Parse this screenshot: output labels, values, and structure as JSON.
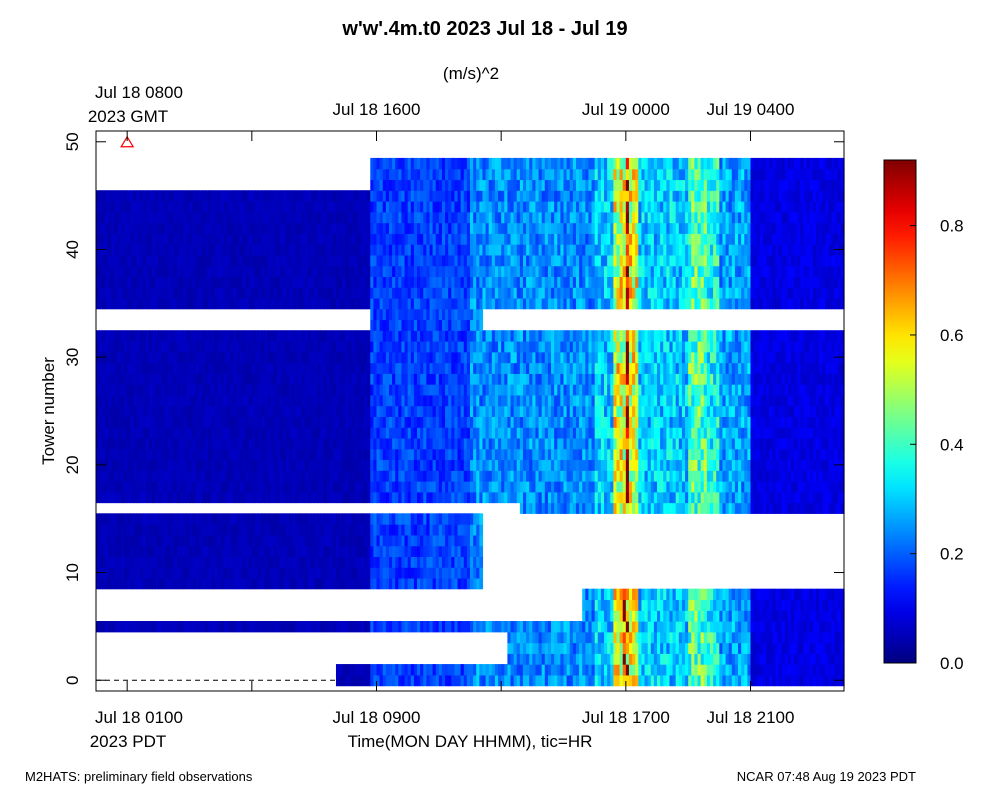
{
  "chart_data": {
    "type": "heatmap",
    "title": "w'w'.4m.t0 2023 Jul 18 - Jul 19",
    "units": "(m/s)^2",
    "ylabel": "Tower number",
    "xlabel": "Time(MON DAY HHMM), tic=HR",
    "top_axis": {
      "first_tick": [
        "Jul 18 0800",
        "2023 GMT"
      ],
      "ticks": [
        "Jul 18 1600",
        "Jul 19 0000",
        "Jul 19 0400"
      ]
    },
    "bottom_axis": {
      "first_tick": [
        "Jul 18 0100",
        "2023 PDT"
      ],
      "ticks": [
        "Jul 18 0900",
        "Jul 18 1700",
        "Jul 18 2100"
      ]
    },
    "x_range_hours_pdt": [
      0,
      24
    ],
    "ylim": [
      -1,
      51
    ],
    "yticks": [
      "0",
      "10",
      "20",
      "30",
      "40",
      "50"
    ],
    "ytick_values": [
      0,
      10,
      20,
      30,
      40,
      50
    ],
    "colorbar": {
      "range": [
        0.0,
        0.92
      ],
      "ticks": [
        "0.0",
        "0.2",
        "0.4",
        "0.6",
        "0.8"
      ],
      "tick_values": [
        0.0,
        0.2,
        0.4,
        0.6,
        0.8
      ],
      "colormap": "jet"
    },
    "marker": {
      "symbol": "triangle",
      "color": "#ff0000",
      "time_hour": 1,
      "tower": 50
    },
    "dashed_line": {
      "tower": 0,
      "from_hour": 0,
      "to_hour": 7.7
    },
    "blocks": [
      {
        "towers": [
          0,
          1
        ],
        "from_hour": 7.7,
        "to_hour": 24
      },
      {
        "towers": [
          2,
          4
        ],
        "from_hour": 13.2,
        "to_hour": 24
      },
      {
        "towers": [
          5,
          5
        ],
        "from_hour": 0,
        "to_hour": 24
      },
      {
        "towers": [
          6,
          8
        ],
        "from_hour": 15.6,
        "to_hour": 24
      },
      {
        "towers": [
          9,
          15
        ],
        "from_hour": 0,
        "to_hour": 12.4
      },
      {
        "towers": [
          16,
          16
        ],
        "from_hour": 13.6,
        "to_hour": 24
      },
      {
        "towers": [
          17,
          32
        ],
        "from_hour": 0,
        "to_hour": 24
      },
      {
        "towers": [
          33,
          34
        ],
        "from_hour": 8.8,
        "to_hour": 12.4
      },
      {
        "towers": [
          35,
          38
        ],
        "from_hour": 0,
        "to_hour": 24
      },
      {
        "towers": [
          39,
          45
        ],
        "from_hour": 0,
        "to_hour": 24
      },
      {
        "towers": [
          46,
          48
        ],
        "from_hour": 8.8,
        "to_hour": 24
      }
    ],
    "intensity_profile_by_hour": [
      {
        "from_hour": 0,
        "to_hour": 8.8,
        "value": 0.05
      },
      {
        "from_hour": 8.8,
        "to_hour": 12,
        "value": 0.17
      },
      {
        "from_hour": 12,
        "to_hour": 16,
        "value": 0.24
      },
      {
        "from_hour": 16,
        "to_hour": 16.6,
        "value": 0.3
      },
      {
        "from_hour": 16.6,
        "to_hour": 16.95,
        "value": 0.55
      },
      {
        "from_hour": 16.95,
        "to_hour": 17.05,
        "value": 0.85
      },
      {
        "from_hour": 17.05,
        "to_hour": 17.4,
        "value": 0.55
      },
      {
        "from_hour": 17.4,
        "to_hour": 19,
        "value": 0.3
      },
      {
        "from_hour": 19,
        "to_hour": 19.6,
        "value": 0.42
      },
      {
        "from_hour": 19.6,
        "to_hour": 20,
        "value": 0.36
      },
      {
        "from_hour": 20,
        "to_hour": 21,
        "value": 0.26
      },
      {
        "from_hour": 21,
        "to_hour": 24,
        "value": 0.09
      }
    ]
  },
  "footer": {
    "left": "M2HATS: preliminary field observations",
    "right": "NCAR 07:48 Aug 19 2023 PDT"
  }
}
